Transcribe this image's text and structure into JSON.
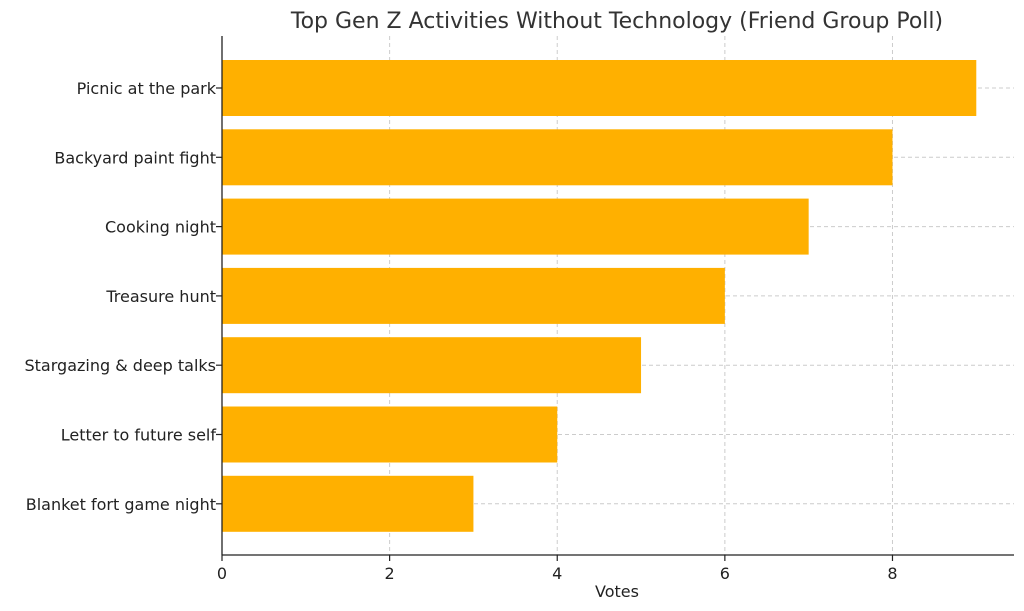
{
  "chart_data": {
    "type": "bar",
    "orientation": "horizontal",
    "title": "Top Gen Z Activities Without Technology (Friend Group Poll)",
    "xlabel": "Votes",
    "ylabel": "",
    "categories": [
      "Picnic at the park",
      "Backyard paint fight",
      "Cooking night",
      "Treasure hunt",
      "Stargazing & deep talks",
      "Letter to future self",
      "Blanket fort game night"
    ],
    "values": [
      9,
      8,
      7,
      6,
      5,
      4,
      3
    ],
    "xlim": [
      0,
      9.45
    ],
    "xticks": [
      "0",
      "2",
      "4",
      "6",
      "8"
    ],
    "grid": true,
    "bar_color": "#FFB000",
    "grid_color": "#cccccc"
  }
}
